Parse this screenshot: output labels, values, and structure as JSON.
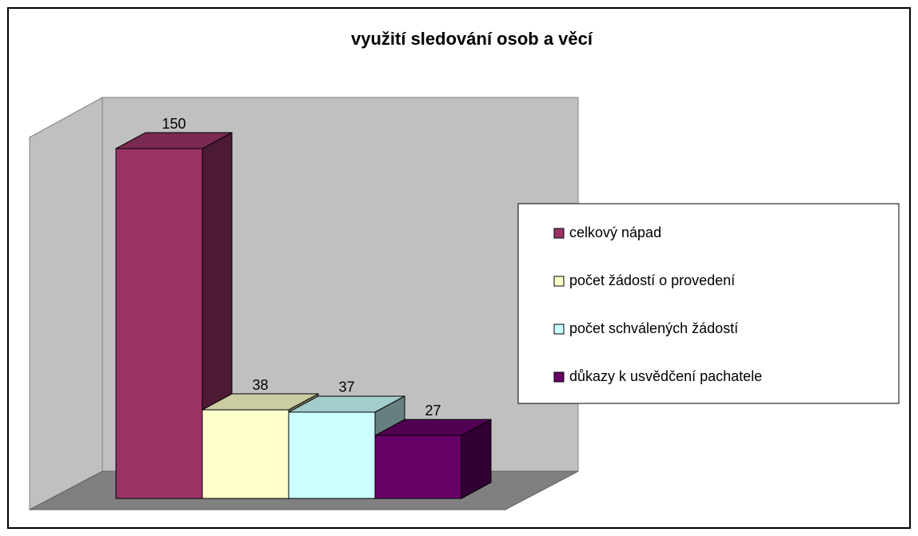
{
  "chart_data": {
    "type": "bar3d",
    "title": "využití sledování osob a věcí",
    "series": [
      {
        "name": "celkový nápad",
        "color": "#993366",
        "values": [
          150
        ]
      },
      {
        "name": "počet žádostí o provedení",
        "color": "#ffffcc",
        "values": [
          38
        ]
      },
      {
        "name": "počet schválených žádostí",
        "color": "#ccffff",
        "values": [
          37
        ]
      },
      {
        "name": "důkazy k usvědčení pachatele",
        "color": "#660066",
        "values": [
          27
        ]
      }
    ],
    "legend": "right"
  }
}
